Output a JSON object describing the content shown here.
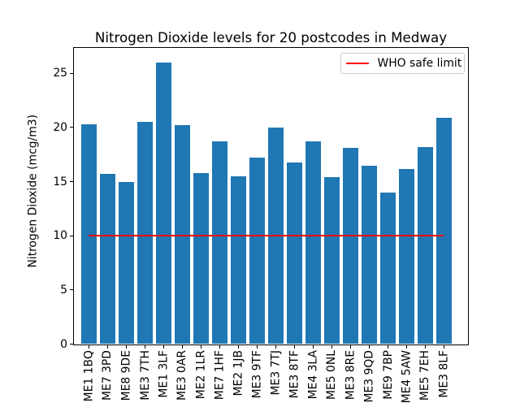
{
  "figure": {
    "title": "Nitrogen Dioxide levels for 20 postcodes in Medway",
    "background": "#ffffff"
  },
  "chart_data": {
    "type": "bar",
    "title": "Nitrogen Dioxide levels for 20 postcodes in Medway",
    "xlabel": "",
    "ylabel": "Nitrogen Dioxide (mcg/m3)",
    "categories": [
      "ME1 1BQ",
      "ME7 3PD",
      "ME8 9DE",
      "ME3 7TH",
      "ME1 3LF",
      "ME3 0AR",
      "ME2 1LR",
      "ME7 1HF",
      "ME2 1JB",
      "ME3 9TF",
      "ME3 7TJ",
      "ME3 8TF",
      "ME4 3LA",
      "ME5 0NL",
      "ME3 8RE",
      "ME3 9QD",
      "ME9 7BP",
      "ME4 5AW",
      "ME5 7EH",
      "ME3 8LF"
    ],
    "values": [
      20.3,
      15.7,
      15.0,
      20.5,
      26.0,
      20.2,
      15.8,
      18.7,
      15.5,
      17.2,
      20.0,
      16.8,
      18.7,
      15.4,
      18.1,
      16.5,
      14.0,
      16.2,
      18.2,
      20.9
    ],
    "yticks": [
      0,
      5,
      10,
      15,
      20,
      25
    ],
    "ylim": [
      0,
      27.4
    ],
    "bar_color": "#1f77b4",
    "grid": false,
    "legend": {
      "position": "upper right",
      "entries": [
        {
          "label": "WHO safe limit",
          "color": "#ff0000",
          "type": "line"
        }
      ]
    },
    "reference_line": {
      "value": 10,
      "color": "#ff0000",
      "label": "WHO safe limit"
    }
  }
}
